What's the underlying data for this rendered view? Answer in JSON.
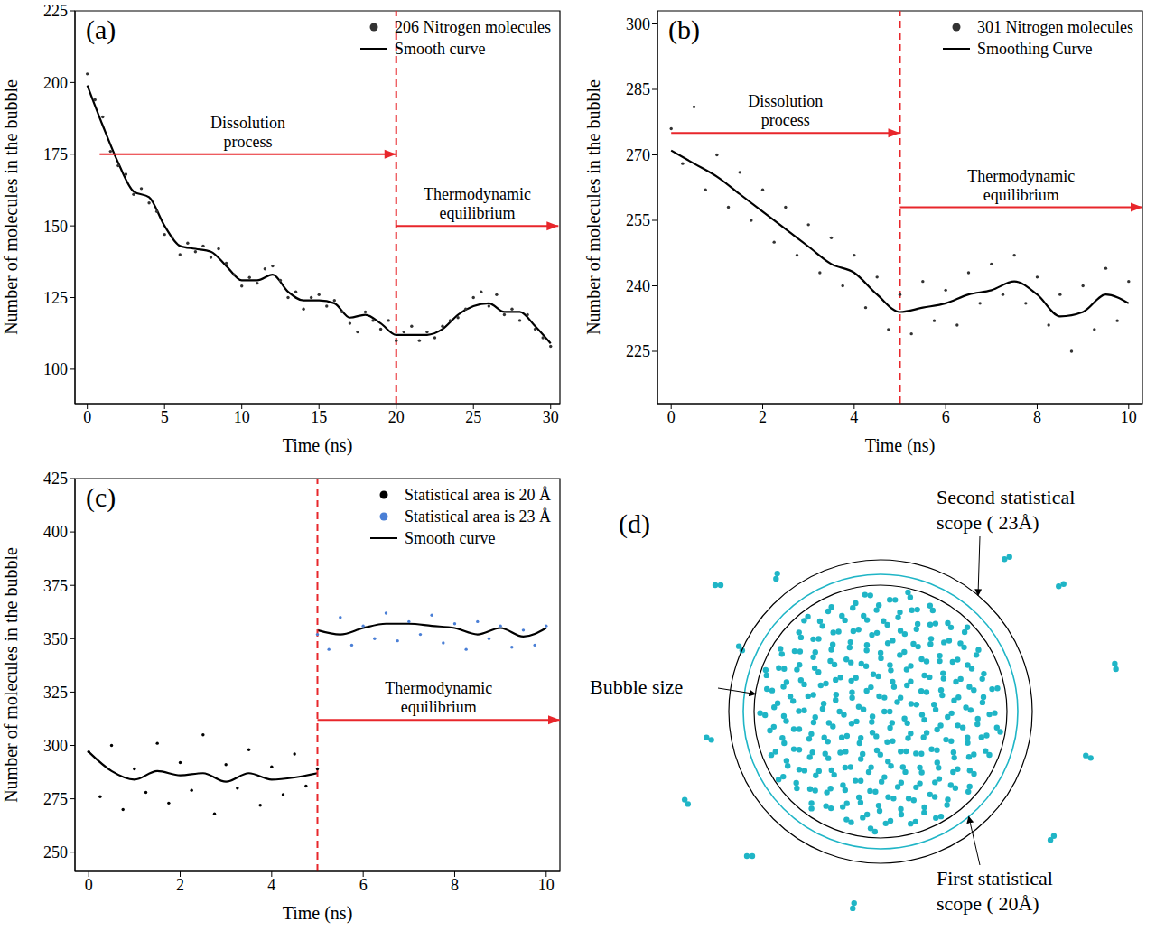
{
  "chart_data": [
    {
      "type": "scatter",
      "title": "(a)",
      "xlabel": "Time (ns)",
      "ylabel": "Number of molecules in the bubble",
      "xlim": [
        -0.8,
        30.6
      ],
      "xticks": [
        0,
        5,
        10,
        15,
        20,
        25,
        30
      ],
      "ylim": [
        88,
        225
      ],
      "yticks": [
        100,
        125,
        150,
        175,
        200,
        225
      ],
      "grid": false,
      "legend": "upper right",
      "series": [
        {
          "name": "206 Nitrogen molecules",
          "type": "scatter",
          "marker": "circle",
          "color": "#333333",
          "x": [
            0,
            0.5,
            1,
            1.5,
            2,
            2.5,
            3,
            3.5,
            4,
            4.5,
            5,
            5.5,
            6,
            6.5,
            7,
            7.5,
            8,
            8.5,
            9,
            9.5,
            10,
            10.5,
            11,
            11.5,
            12,
            12.5,
            13,
            13.5,
            14,
            14.5,
            15,
            15.5,
            16,
            16.5,
            17,
            17.5,
            18,
            18.5,
            19,
            19.5,
            20,
            20.5,
            21,
            21.5,
            22,
            22.5,
            23,
            23.5,
            24,
            24.5,
            25,
            25.5,
            26,
            26.5,
            27,
            27.5,
            28,
            28.5,
            29,
            29.5,
            30
          ],
          "values": [
            203,
            194,
            188,
            176,
            171,
            168,
            161,
            163,
            158,
            155,
            147,
            146,
            140,
            144,
            141,
            143,
            139,
            142,
            137,
            133,
            129,
            132,
            130,
            135,
            136,
            131,
            125,
            127,
            121,
            125,
            126,
            122,
            124,
            120,
            116,
            113,
            120,
            117,
            114,
            117,
            110,
            113,
            115,
            110,
            113,
            111,
            115,
            117,
            118,
            121,
            125,
            127,
            122,
            126,
            119,
            121,
            117,
            119,
            114,
            111,
            108
          ]
        },
        {
          "name": "Smooth curve",
          "type": "line",
          "color": "#000000",
          "line_style": "solid",
          "x": [
            0,
            1,
            2,
            3,
            4,
            5,
            6,
            7,
            8,
            9,
            10,
            11,
            12,
            13,
            14,
            15,
            16,
            17,
            18,
            19,
            20,
            21,
            22,
            23,
            24,
            25,
            26,
            27,
            28,
            29,
            30
          ],
          "values": [
            199,
            185,
            172,
            162,
            160,
            150,
            143,
            142,
            141,
            136,
            131,
            131,
            133,
            127,
            124,
            124,
            123,
            118,
            119,
            116,
            112,
            112,
            112,
            114,
            119,
            122,
            123,
            120,
            120,
            115,
            109
          ]
        }
      ],
      "vlines": [
        {
          "x": 20,
          "color": "#e8262b",
          "line_style": "dashed"
        }
      ],
      "annotations": [
        {
          "text": "Dissolution process",
          "x": [
            0.8,
            20
          ],
          "y": 175,
          "color": "#e8262b"
        },
        {
          "text": "Thermodynamic equilibrium",
          "x": [
            20,
            30.5
          ],
          "y": 150,
          "color": "#e8262b"
        }
      ]
    },
    {
      "type": "scatter",
      "title": "(b)",
      "xlabel": "Time (ns)",
      "ylabel": "Number of molecules in the bubble",
      "xlim": [
        -0.3,
        10.3
      ],
      "xticks": [
        0,
        2,
        4,
        6,
        8,
        10
      ],
      "ylim": [
        213,
        303
      ],
      "yticks": [
        225,
        240,
        255,
        270,
        285,
        300
      ],
      "grid": false,
      "legend": "upper right",
      "series": [
        {
          "name": "301 Nitrogen molecules",
          "type": "scatter",
          "marker": "circle",
          "color": "#333333",
          "x": [
            0,
            0.25,
            0.5,
            0.75,
            1,
            1.25,
            1.5,
            1.75,
            2,
            2.25,
            2.5,
            2.75,
            3,
            3.25,
            3.5,
            3.75,
            4,
            4.25,
            4.5,
            4.75,
            5,
            5.25,
            5.5,
            5.75,
            6,
            6.25,
            6.5,
            6.75,
            7,
            7.25,
            7.5,
            7.75,
            8,
            8.25,
            8.5,
            8.75,
            9,
            9.25,
            9.5,
            9.75,
            10
          ],
          "values": [
            276,
            268,
            281,
            262,
            270,
            258,
            266,
            255,
            262,
            250,
            258,
            247,
            254,
            243,
            251,
            240,
            247,
            235,
            242,
            230,
            238,
            229,
            241,
            232,
            239,
            231,
            243,
            236,
            245,
            238,
            247,
            236,
            242,
            231,
            238,
            225,
            240,
            230,
            244,
            232,
            241
          ]
        },
        {
          "name": "Smoothing Curve",
          "type": "line",
          "color": "#000000",
          "line_style": "solid",
          "x": [
            0,
            0.5,
            1,
            1.5,
            2,
            2.5,
            3,
            3.5,
            4,
            4.5,
            5,
            5.5,
            6,
            6.5,
            7,
            7.5,
            8,
            8.5,
            9,
            9.5,
            10
          ],
          "values": [
            271,
            268,
            265,
            261,
            257,
            253,
            249,
            245,
            243,
            238,
            234,
            235,
            236,
            238,
            239,
            241,
            238,
            233,
            234,
            238,
            236
          ]
        }
      ],
      "vlines": [
        {
          "x": 5,
          "color": "#e8262b",
          "line_style": "dashed"
        }
      ],
      "annotations": [
        {
          "text": "Dissolution process",
          "x": [
            0,
            5
          ],
          "y": 275,
          "color": "#e8262b"
        },
        {
          "text": "Thermodynamic equilibrium",
          "x": [
            5,
            10.3
          ],
          "y": 258,
          "color": "#e8262b"
        }
      ]
    },
    {
      "type": "scatter",
      "title": "(c)",
      "xlabel": "Time (ns)",
      "ylabel": "Number of molecules in the bubble",
      "xlim": [
        -0.3,
        10.3
      ],
      "xticks": [
        0,
        2,
        4,
        6,
        8,
        10
      ],
      "ylim": [
        241,
        425
      ],
      "yticks": [
        250,
        275,
        300,
        325,
        350,
        375,
        400,
        425
      ],
      "grid": false,
      "legend": "upper right",
      "series": [
        {
          "name": "Statistical area is 20 Å",
          "type": "scatter",
          "marker": "circle",
          "color": "#000000",
          "x": [
            0,
            0.25,
            0.5,
            0.75,
            1,
            1.25,
            1.5,
            1.75,
            2,
            2.25,
            2.5,
            2.75,
            3,
            3.25,
            3.5,
            3.75,
            4,
            4.25,
            4.5,
            4.75,
            5
          ],
          "values": [
            297,
            276,
            300,
            270,
            289,
            278,
            301,
            273,
            292,
            279,
            305,
            268,
            291,
            280,
            298,
            272,
            290,
            277,
            296,
            281,
            289
          ]
        },
        {
          "name": "Statistical area is 23 Å",
          "type": "scatter",
          "marker": "circle",
          "color": "#4a7fd6",
          "x": [
            5,
            5.25,
            5.5,
            5.75,
            6,
            6.25,
            6.5,
            6.75,
            7,
            7.25,
            7.5,
            7.75,
            8,
            8.25,
            8.5,
            8.75,
            9,
            9.25,
            9.5,
            9.75,
            10
          ],
          "values": [
            352,
            345,
            360,
            347,
            356,
            350,
            362,
            349,
            358,
            352,
            361,
            348,
            357,
            345,
            358,
            350,
            356,
            346,
            354,
            347,
            356
          ]
        },
        {
          "name": "Smooth curve",
          "type": "line",
          "color": "#000000",
          "line_style": "solid",
          "x": [
            0,
            0.5,
            1,
            1.5,
            2,
            2.5,
            3,
            3.5,
            4,
            4.5,
            5,
            5,
            5,
            5.5,
            6,
            6.5,
            7,
            7.5,
            8,
            8.5,
            9,
            9.5,
            10
          ],
          "values": [
            297,
            288,
            284,
            288,
            286,
            287,
            283,
            287,
            284,
            285,
            287,
            null,
            354,
            352,
            355,
            357,
            357,
            356,
            355,
            352,
            355,
            351,
            355
          ]
        }
      ],
      "vlines": [
        {
          "x": 5,
          "color": "#e8262b",
          "line_style": "dashed"
        }
      ],
      "annotations": [
        {
          "text": "Thermodynamic equilibrium",
          "x": [
            5,
            10.3
          ],
          "y": 312,
          "color": "#e8262b"
        }
      ]
    }
  ],
  "diagram": {
    "title": "(d)",
    "bubble_label": "Bubble size",
    "first_scope_label": "First statistical scope ( 20Å)",
    "second_scope_label": "Second statistical scope ( 23Å)"
  }
}
